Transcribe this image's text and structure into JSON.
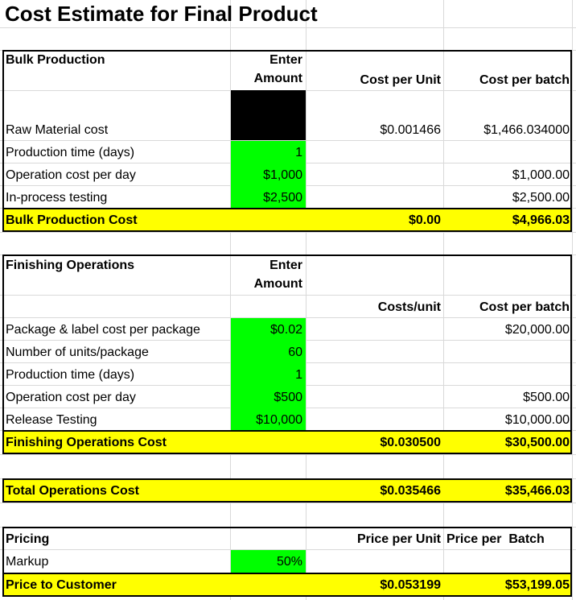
{
  "title": "Cost Estimate for Final Product",
  "bulk": {
    "header": "Bulk Production",
    "enter_amount": "Enter Amount",
    "enter_line1": "Enter",
    "enter_line2": "Amount",
    "cost_per_unit_hdr": "Cost per Unit",
    "cost_per_batch_hdr": "Cost per batch",
    "rows": [
      {
        "label": "Raw Material cost",
        "amount": "",
        "unit": "$0.001466",
        "batch": "$1,466.034000"
      },
      {
        "label": "Production time (days)",
        "amount": "1",
        "unit": "",
        "batch": ""
      },
      {
        "label": "Operation cost per day",
        "amount": "$1,000",
        "unit": "",
        "batch": "$1,000.00"
      },
      {
        "label": "In-process testing",
        "amount": "$2,500",
        "unit": "",
        "batch": "$2,500.00"
      }
    ],
    "total": {
      "label": "Bulk Production Cost",
      "unit": "$0.00",
      "batch": "$4,966.03"
    }
  },
  "finishing": {
    "header": "Finishing Operations",
    "enter_line1": "Enter",
    "enter_line2": "Amount",
    "costs_unit_hdr": "Costs/unit",
    "cost_per_batch_hdr": "Cost per batch",
    "rows": [
      {
        "label": "Package & label cost per package",
        "amount": "$0.02",
        "unit": "",
        "batch": "$20,000.00"
      },
      {
        "label": "Number of units/package",
        "amount": "60",
        "unit": "",
        "batch": ""
      },
      {
        "label": "Production time (days)",
        "amount": "1",
        "unit": "",
        "batch": ""
      },
      {
        "label": "Operation cost per day",
        "amount": "$500",
        "unit": "",
        "batch": "$500.00"
      },
      {
        "label": "Release Testing",
        "amount": "$10,000",
        "unit": "",
        "batch": "$10,000.00"
      }
    ],
    "total": {
      "label": "Finishing Operations Cost",
      "unit": "$0.030500",
      "batch": "$30,500.00"
    }
  },
  "total_ops": {
    "label": "Total Operations Cost",
    "unit": "$0.035466",
    "batch": "$35,466.03"
  },
  "pricing": {
    "header": "Pricing",
    "price_unit_hdr": "Price per Unit",
    "price_batch_hdr": "Price per  Batch",
    "markup_label": "Markup",
    "markup_value": "50%",
    "total": {
      "label": "Price to Customer",
      "unit": "$0.053199",
      "batch": "$53,199.05"
    }
  },
  "colors": {
    "input": "#00ff00",
    "total": "#ffff00",
    "grid": "#d9d9d9"
  }
}
